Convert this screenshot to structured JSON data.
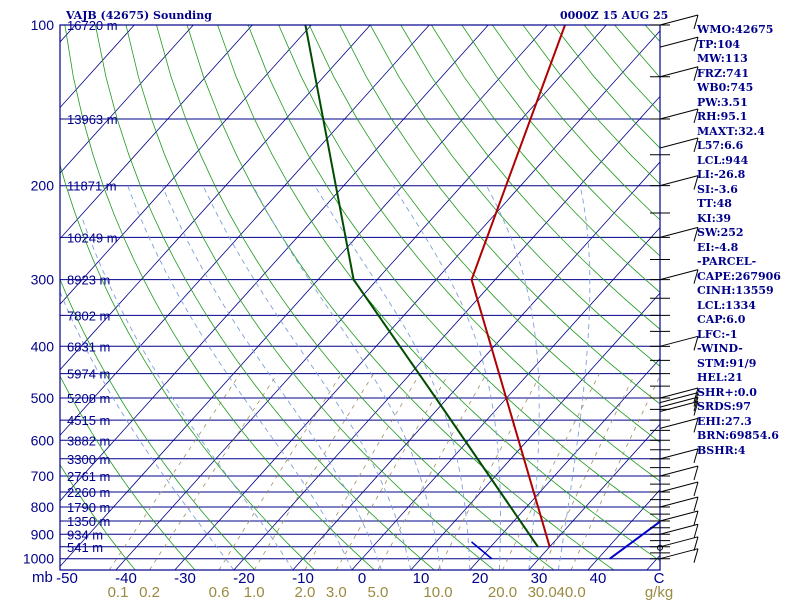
{
  "header": {
    "title": "VAJB (42675) Sounding",
    "time": "0000Z 15 AUG 25"
  },
  "indices": [
    "WMO:42675",
    "TP:104",
    "MW:113",
    "FRZ:741",
    "WB0:745",
    "PW:3.51",
    "RH:95.1",
    "MAXT:32.4",
    "L57:6.6",
    "LCL:944",
    "LI:-26.8",
    "SI:-3.6",
    "TT:48",
    "KI:39",
    "SW:252",
    "EI:-4.8",
    "-PARCEL-",
    "CAPE:267906",
    "CINH:13559",
    "LCL:1334",
    "CAP:6.0",
    "LFC:-1",
    "-WIND-",
    "STM:91/9",
    "HEL:21",
    "SHR+:0.0",
    "SRDS:97",
    "EHI:27.3",
    "BRN:69854.6",
    "BSHR:4"
  ],
  "colors": {
    "frame": "#00008b",
    "isobar": "#00008b",
    "isotherm": "#00008b",
    "dry_adiabat": "#1e9a1e",
    "moist_adiabat": "#7fa0d8",
    "mixing_ratio": "#a09060",
    "temperature": "#b00000",
    "dewpoint": "#004d00",
    "hodo_wind": "#0000cc",
    "wind_barb": "#000000",
    "label_text": "#00008b",
    "mixing_label_text": "#9a8a40"
  },
  "chart_data": {
    "type": "skew-t log-p",
    "title": "VAJB (42675) Sounding",
    "xlabel": "C",
    "ylabel": "mb",
    "temperature_ticks": [
      -50,
      -40,
      -30,
      -20,
      -10,
      0,
      10,
      20,
      30,
      40
    ],
    "temperature_tick_labels": [
      "-50",
      "-40",
      "-30",
      "-20",
      "-10",
      "0",
      "10",
      "20",
      "30",
      "40"
    ],
    "mixing_ratio_unit": "g/kg",
    "mixing_ratio_values": [
      0.1,
      0.2,
      0.6,
      1.0,
      2.0,
      3.0,
      5.0,
      10.0,
      20.0,
      30.0,
      40.0
    ],
    "mixing_ratio_labels": [
      "0.1",
      "0.2",
      "0.6",
      "1.0",
      "2.0",
      "3.0",
      "5.0",
      "10.0",
      "20.0",
      "30.0",
      "40.0"
    ],
    "pressure_labels": [
      {
        "p": 100,
        "label": "100"
      },
      {
        "p": 200,
        "label": "200"
      },
      {
        "p": 300,
        "label": "300"
      },
      {
        "p": 400,
        "label": "400"
      },
      {
        "p": 500,
        "label": "500"
      },
      {
        "p": 600,
        "label": "600"
      },
      {
        "p": 700,
        "label": "700"
      },
      {
        "p": 800,
        "label": "800"
      },
      {
        "p": 900,
        "label": "900"
      },
      {
        "p": 1000,
        "label": "1000"
      }
    ],
    "heights": [
      {
        "p": 100,
        "label": "16720 m"
      },
      {
        "p": 150,
        "label": "13963 m"
      },
      {
        "p": 200,
        "label": "11871 m"
      },
      {
        "p": 250,
        "label": "10249 m"
      },
      {
        "p": 300,
        "label": "8923 m"
      },
      {
        "p": 350,
        "label": "7802 m"
      },
      {
        "p": 400,
        "label": "6831 m"
      },
      {
        "p": 450,
        "label": "5974 m"
      },
      {
        "p": 500,
        "label": "5208 m"
      },
      {
        "p": 550,
        "label": "4515 m"
      },
      {
        "p": 600,
        "label": "3882 m"
      },
      {
        "p": 650,
        "label": "3300 m"
      },
      {
        "p": 700,
        "label": "2761 m"
      },
      {
        "p": 750,
        "label": "2260 m"
      },
      {
        "p": 800,
        "label": "1790 m"
      },
      {
        "p": 850,
        "label": "1350 m"
      },
      {
        "p": 900,
        "label": "934 m"
      },
      {
        "p": 950,
        "label": "541 m"
      }
    ],
    "temperature_profile": [
      {
        "p": 950,
        "t": 30
      },
      {
        "p": 300,
        "t": -24
      },
      {
        "p": 100,
        "t": -47
      }
    ],
    "dewpoint_profile": [
      {
        "p": 950,
        "td": 28
      },
      {
        "p": 500,
        "td": -12
      },
      {
        "p": 300,
        "td": -44
      },
      {
        "p": 100,
        "td": -91
      }
    ],
    "wind_profile_line": [
      {
        "p": 1000,
        "t": 42
      },
      {
        "p": 800,
        "t": 46
      },
      {
        "p": 600,
        "t": 56
      },
      {
        "p": 550,
        "t": 58
      }
    ],
    "short_line": [
      {
        "p": 930,
        "t": 16
      },
      {
        "p": 1000,
        "t": 22
      }
    ],
    "wind_barb_levels": [
      100,
      110,
      125,
      150,
      170,
      200,
      250,
      300,
      400,
      500,
      510,
      520,
      530,
      570,
      650,
      700,
      750,
      800,
      850,
      900,
      950,
      1000
    ],
    "ylim": [
      1000,
      100
    ],
    "xlim": [
      -50,
      50
    ]
  }
}
